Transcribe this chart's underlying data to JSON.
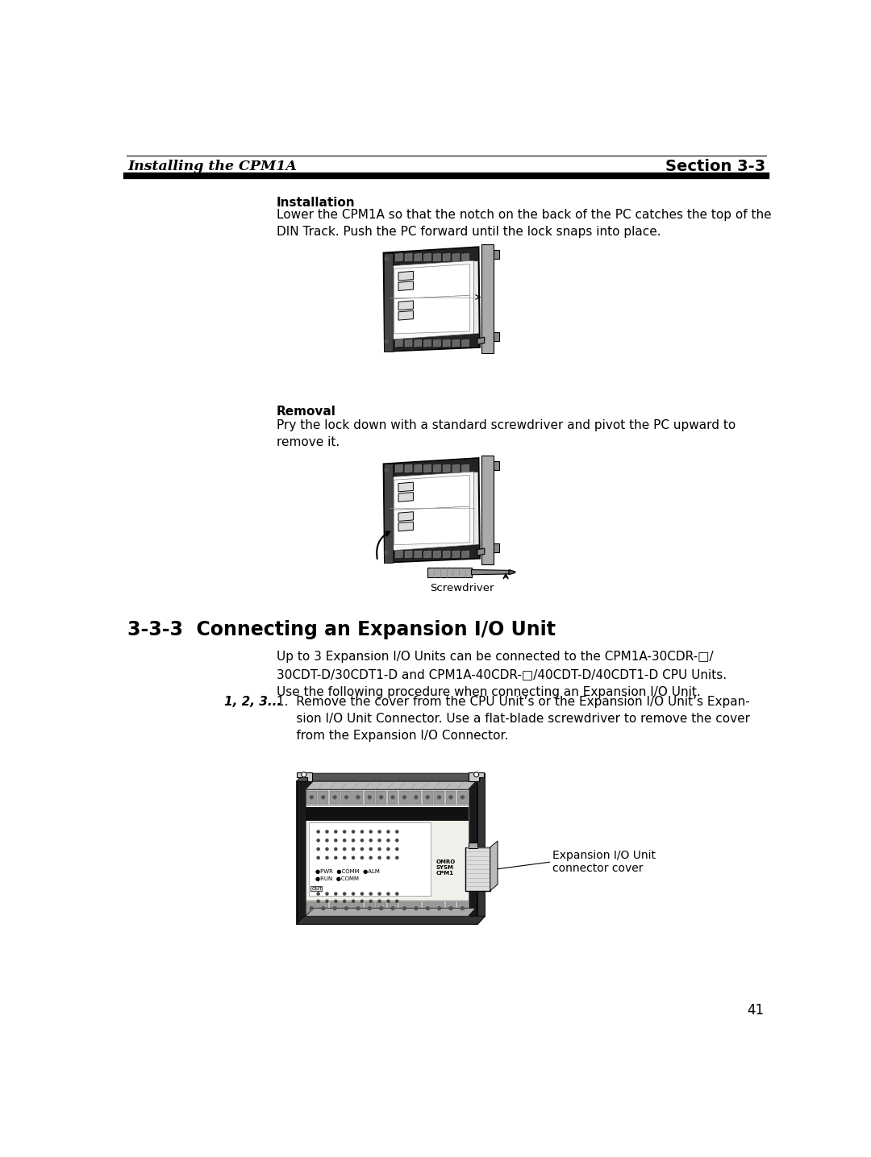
{
  "bg_color": "#ffffff",
  "header_left": "Installing the CPM1A",
  "header_right": "Section 3-3",
  "installation_title": "Installation",
  "installation_text": "Lower the CPM1A so that the notch on the back of the PC catches the top of the\nDIN Track. Push the PC forward until the lock snaps into place.",
  "removal_title": "Removal",
  "removal_text": "Pry the lock down with a standard screwdriver and pivot the PC upward to\nremove it.",
  "screwdriver_label": "Screwdriver",
  "section_title": "3-3-3  Connecting an Expansion I/O Unit",
  "section_body": "Up to 3 Expansion I/O Units can be connected to the CPM1A-30CDR-□/\n30CDT-D/30CDT1-D and CPM1A-40CDR-□/40CDT-D/40CDT1-D CPU Units.\nUse the following procedure when connecting an Expansion I/O Unit.",
  "step_label": "1, 2, 3...",
  "step1_text": "1.  Remove the cover from the CPU Unit’s or the Expansion I/O Unit’s Expan-\n     sion I/O Unit Connector. Use a flat-blade screwdriver to remove the cover\n     from the Expansion I/O Connector.",
  "connector_label": "Expansion I/O Unit\nconnector cover",
  "page_number": "41",
  "text_color": "#000000"
}
